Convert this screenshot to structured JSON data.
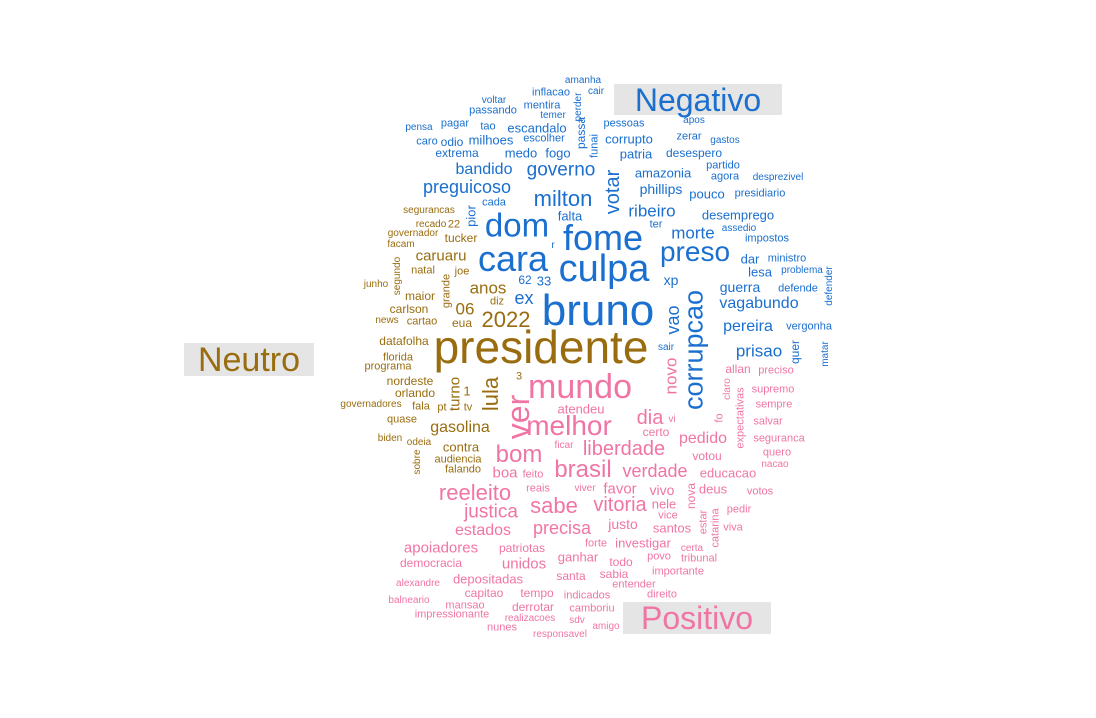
{
  "colors": {
    "negativo": "#1a6fcf",
    "neutro": "#996d0f",
    "positivo": "#f075a5",
    "label_bg": "#e5e5e5"
  },
  "categories": {
    "negativo": "Negativo",
    "neutro": "Neutro",
    "positivo": "Positivo"
  },
  "words": [
    {
      "text": "amanha",
      "cat": "negativo",
      "fs": 10
    },
    {
      "text": "cair",
      "cat": "negativo",
      "fs": 10
    },
    {
      "text": "inflacao",
      "cat": "negativo",
      "fs": 11
    },
    {
      "text": "voltar",
      "cat": "negativo",
      "fs": 10
    },
    {
      "text": "mentira",
      "cat": "negativo",
      "fs": 11
    },
    {
      "text": "perder",
      "cat": "negativo",
      "fs": 10,
      "rot": true
    },
    {
      "text": "passando",
      "cat": "negativo",
      "fs": 11
    },
    {
      "text": "temer",
      "cat": "negativo",
      "fs": 10
    },
    {
      "text": "apos",
      "cat": "negativo",
      "fs": 10
    },
    {
      "text": "passa",
      "cat": "negativo",
      "fs": 12,
      "rot": true
    },
    {
      "text": "pensa",
      "cat": "negativo",
      "fs": 10
    },
    {
      "text": "pagar",
      "cat": "negativo",
      "fs": 11
    },
    {
      "text": "tao",
      "cat": "negativo",
      "fs": 11
    },
    {
      "text": "escandalo",
      "cat": "negativo",
      "fs": 13
    },
    {
      "text": "pessoas",
      "cat": "negativo",
      "fs": 11
    },
    {
      "text": "caro",
      "cat": "negativo",
      "fs": 11
    },
    {
      "text": "odio",
      "cat": "negativo",
      "fs": 12
    },
    {
      "text": "milhoes",
      "cat": "negativo",
      "fs": 13
    },
    {
      "text": "escolher",
      "cat": "negativo",
      "fs": 11
    },
    {
      "text": "funai",
      "cat": "negativo",
      "fs": 11,
      "rot": true
    },
    {
      "text": "corrupto",
      "cat": "negativo",
      "fs": 13
    },
    {
      "text": "zerar",
      "cat": "negativo",
      "fs": 11
    },
    {
      "text": "gastos",
      "cat": "negativo",
      "fs": 10
    },
    {
      "text": "extrema",
      "cat": "negativo",
      "fs": 12
    },
    {
      "text": "medo",
      "cat": "negativo",
      "fs": 13
    },
    {
      "text": "fogo",
      "cat": "negativo",
      "fs": 13
    },
    {
      "text": "patria",
      "cat": "negativo",
      "fs": 13
    },
    {
      "text": "desespero",
      "cat": "negativo",
      "fs": 12
    },
    {
      "text": "partido",
      "cat": "negativo",
      "fs": 11
    },
    {
      "text": "bandido",
      "cat": "negativo",
      "fs": 16
    },
    {
      "text": "governo",
      "cat": "negativo",
      "fs": 19
    },
    {
      "text": "amazonia",
      "cat": "negativo",
      "fs": 13
    },
    {
      "text": "agora",
      "cat": "negativo",
      "fs": 11
    },
    {
      "text": "desprezivel",
      "cat": "negativo",
      "fs": 10
    },
    {
      "text": "votar",
      "cat": "negativo",
      "fs": 20,
      "rot": true
    },
    {
      "text": "preguicoso",
      "cat": "negativo",
      "fs": 18
    },
    {
      "text": "phillips",
      "cat": "negativo",
      "fs": 14
    },
    {
      "text": "pouco",
      "cat": "negativo",
      "fs": 13
    },
    {
      "text": "presidiario",
      "cat": "negativo",
      "fs": 11
    },
    {
      "text": "milton",
      "cat": "negativo",
      "fs": 22
    },
    {
      "text": "cada",
      "cat": "negativo",
      "fs": 11
    },
    {
      "text": "ribeiro",
      "cat": "negativo",
      "fs": 17
    },
    {
      "text": "desemprego",
      "cat": "negativo",
      "fs": 13
    },
    {
      "text": "dom",
      "cat": "negativo",
      "fs": 33
    },
    {
      "text": "falta",
      "cat": "negativo",
      "fs": 13
    },
    {
      "text": "pior",
      "cat": "negativo",
      "fs": 13,
      "rot": true
    },
    {
      "text": "ter",
      "cat": "negativo",
      "fs": 11
    },
    {
      "text": "assedio",
      "cat": "negativo",
      "fs": 10
    },
    {
      "text": "fome",
      "cat": "negativo",
      "fs": 36
    },
    {
      "text": "morte",
      "cat": "negativo",
      "fs": 17
    },
    {
      "text": "impostos",
      "cat": "negativo",
      "fs": 11
    },
    {
      "text": "r",
      "cat": "negativo",
      "fs": 10
    },
    {
      "text": "cara",
      "cat": "negativo",
      "fs": 36
    },
    {
      "text": "preso",
      "cat": "negativo",
      "fs": 28
    },
    {
      "text": "dar",
      "cat": "negativo",
      "fs": 13
    },
    {
      "text": "ministro",
      "cat": "negativo",
      "fs": 11
    },
    {
      "text": "culpa",
      "cat": "negativo",
      "fs": 38
    },
    {
      "text": "lesa",
      "cat": "negativo",
      "fs": 13
    },
    {
      "text": "problema",
      "cat": "negativo",
      "fs": 10
    },
    {
      "text": "62",
      "cat": "negativo",
      "fs": 12
    },
    {
      "text": "33",
      "cat": "negativo",
      "fs": 13
    },
    {
      "text": "xp",
      "cat": "negativo",
      "fs": 14
    },
    {
      "text": "guerra",
      "cat": "negativo",
      "fs": 14
    },
    {
      "text": "defende",
      "cat": "negativo",
      "fs": 11
    },
    {
      "text": "defender",
      "cat": "negativo",
      "fs": 10,
      "rot": true
    },
    {
      "text": "ex",
      "cat": "negativo",
      "fs": 18
    },
    {
      "text": "bruno",
      "cat": "negativo",
      "fs": 44
    },
    {
      "text": "corrupcao",
      "cat": "negativo",
      "fs": 27,
      "rot": true
    },
    {
      "text": "vagabundo",
      "cat": "negativo",
      "fs": 16
    },
    {
      "text": "vao",
      "cat": "negativo",
      "fs": 18,
      "rot": true
    },
    {
      "text": "pereira",
      "cat": "negativo",
      "fs": 16
    },
    {
      "text": "vergonha",
      "cat": "negativo",
      "fs": 11
    },
    {
      "text": "quer",
      "cat": "negativo",
      "fs": 12,
      "rot": true
    },
    {
      "text": "prisao",
      "cat": "negativo",
      "fs": 17
    },
    {
      "text": "sair",
      "cat": "negativo",
      "fs": 10
    },
    {
      "text": "matar",
      "cat": "negativo",
      "fs": 10,
      "rot": true
    },
    {
      "text": "segurancas",
      "cat": "neutro",
      "fs": 10
    },
    {
      "text": "governador",
      "cat": "neutro",
      "fs": 10
    },
    {
      "text": "recado",
      "cat": "neutro",
      "fs": 10
    },
    {
      "text": "22",
      "cat": "neutro",
      "fs": 11
    },
    {
      "text": "tucker",
      "cat": "neutro",
      "fs": 12
    },
    {
      "text": "facam",
      "cat": "neutro",
      "fs": 10
    },
    {
      "text": "caruaru",
      "cat": "neutro",
      "fs": 15
    },
    {
      "text": "segundo",
      "cat": "neutro",
      "fs": 10,
      "rot": true
    },
    {
      "text": "natal",
      "cat": "neutro",
      "fs": 11
    },
    {
      "text": "joe",
      "cat": "neutro",
      "fs": 11
    },
    {
      "text": "junho",
      "cat": "neutro",
      "fs": 10
    },
    {
      "text": "grande",
      "cat": "neutro",
      "fs": 11,
      "rot": true
    },
    {
      "text": "anos",
      "cat": "neutro",
      "fs": 17
    },
    {
      "text": "maior",
      "cat": "neutro",
      "fs": 12
    },
    {
      "text": "diz",
      "cat": "neutro",
      "fs": 11
    },
    {
      "text": "carlson",
      "cat": "neutro",
      "fs": 12
    },
    {
      "text": "06",
      "cat": "neutro",
      "fs": 17
    },
    {
      "text": "2022",
      "cat": "neutro",
      "fs": 22
    },
    {
      "text": "news",
      "cat": "neutro",
      "fs": 10
    },
    {
      "text": "cartao",
      "cat": "neutro",
      "fs": 11
    },
    {
      "text": "eua",
      "cat": "neutro",
      "fs": 12
    },
    {
      "text": "datafolha",
      "cat": "neutro",
      "fs": 12
    },
    {
      "text": "presidente",
      "cat": "neutro",
      "fs": 46
    },
    {
      "text": "florida",
      "cat": "neutro",
      "fs": 11
    },
    {
      "text": "programa",
      "cat": "neutro",
      "fs": 11
    },
    {
      "text": "nordeste",
      "cat": "neutro",
      "fs": 12
    },
    {
      "text": "turno",
      "cat": "neutro",
      "fs": 15,
      "rot": true
    },
    {
      "text": "orlando",
      "cat": "neutro",
      "fs": 12
    },
    {
      "text": "1",
      "cat": "neutro",
      "fs": 13
    },
    {
      "text": "lula",
      "cat": "neutro",
      "fs": 22,
      "rot": true
    },
    {
      "text": "3",
      "cat": "neutro",
      "fs": 11
    },
    {
      "text": "governadores",
      "cat": "neutro",
      "fs": 10
    },
    {
      "text": "fala",
      "cat": "neutro",
      "fs": 11
    },
    {
      "text": "pt",
      "cat": "neutro",
      "fs": 11
    },
    {
      "text": "tv",
      "cat": "neutro",
      "fs": 11
    },
    {
      "text": "quase",
      "cat": "neutro",
      "fs": 11
    },
    {
      "text": "gasolina",
      "cat": "neutro",
      "fs": 16
    },
    {
      "text": "biden",
      "cat": "neutro",
      "fs": 10
    },
    {
      "text": "odeia",
      "cat": "neutro",
      "fs": 10
    },
    {
      "text": "contra",
      "cat": "neutro",
      "fs": 13
    },
    {
      "text": "audiencia",
      "cat": "neutro",
      "fs": 11
    },
    {
      "text": "sobre",
      "cat": "neutro",
      "fs": 10,
      "rot": true
    },
    {
      "text": "falando",
      "cat": "neutro",
      "fs": 11
    },
    {
      "text": "mundo",
      "cat": "positivo",
      "fs": 34
    },
    {
      "text": "ver",
      "cat": "positivo",
      "fs": 32,
      "rot": true
    },
    {
      "text": "novo",
      "cat": "positivo",
      "fs": 17,
      "rot": true
    },
    {
      "text": "allan",
      "cat": "positivo",
      "fs": 12
    },
    {
      "text": "claro",
      "cat": "positivo",
      "fs": 10,
      "rot": true
    },
    {
      "text": "preciso",
      "cat": "positivo",
      "fs": 11
    },
    {
      "text": "supremo",
      "cat": "positivo",
      "fs": 11
    },
    {
      "text": "sempre",
      "cat": "positivo",
      "fs": 11
    },
    {
      "text": "atendeu",
      "cat": "positivo",
      "fs": 13
    },
    {
      "text": "dia",
      "cat": "positivo",
      "fs": 20
    },
    {
      "text": "vi",
      "cat": "positivo",
      "fs": 10
    },
    {
      "text": "fo",
      "cat": "positivo",
      "fs": 11,
      "rot": true
    },
    {
      "text": "expectativas",
      "cat": "positivo",
      "fs": 11,
      "rot": true
    },
    {
      "text": "salvar",
      "cat": "positivo",
      "fs": 11
    },
    {
      "text": "melhor",
      "cat": "positivo",
      "fs": 28
    },
    {
      "text": "certo",
      "cat": "positivo",
      "fs": 12
    },
    {
      "text": "seguranca",
      "cat": "positivo",
      "fs": 11
    },
    {
      "text": "pedido",
      "cat": "positivo",
      "fs": 16
    },
    {
      "text": "quero",
      "cat": "positivo",
      "fs": 11
    },
    {
      "text": "bom",
      "cat": "positivo",
      "fs": 24
    },
    {
      "text": "liberdade",
      "cat": "positivo",
      "fs": 20
    },
    {
      "text": "ficar",
      "cat": "positivo",
      "fs": 10
    },
    {
      "text": "votou",
      "cat": "positivo",
      "fs": 12
    },
    {
      "text": "nacao",
      "cat": "positivo",
      "fs": 10
    },
    {
      "text": "brasil",
      "cat": "positivo",
      "fs": 24
    },
    {
      "text": "verdade",
      "cat": "positivo",
      "fs": 18
    },
    {
      "text": "educacao",
      "cat": "positivo",
      "fs": 13
    },
    {
      "text": "boa",
      "cat": "positivo",
      "fs": 15
    },
    {
      "text": "feito",
      "cat": "positivo",
      "fs": 11
    },
    {
      "text": "deus",
      "cat": "positivo",
      "fs": 13
    },
    {
      "text": "reais",
      "cat": "positivo",
      "fs": 11
    },
    {
      "text": "viver",
      "cat": "positivo",
      "fs": 10
    },
    {
      "text": "favor",
      "cat": "positivo",
      "fs": 15
    },
    {
      "text": "vivo",
      "cat": "positivo",
      "fs": 14
    },
    {
      "text": "nova",
      "cat": "positivo",
      "fs": 12,
      "rot": true
    },
    {
      "text": "votos",
      "cat": "positivo",
      "fs": 11
    },
    {
      "text": "reeleito",
      "cat": "positivo",
      "fs": 22
    },
    {
      "text": "sabe",
      "cat": "positivo",
      "fs": 22
    },
    {
      "text": "vitoria",
      "cat": "positivo",
      "fs": 20
    },
    {
      "text": "nele",
      "cat": "positivo",
      "fs": 13
    },
    {
      "text": "pedir",
      "cat": "positivo",
      "fs": 11
    },
    {
      "text": "justica",
      "cat": "positivo",
      "fs": 19
    },
    {
      "text": "vice",
      "cat": "positivo",
      "fs": 11
    },
    {
      "text": "estar",
      "cat": "positivo",
      "fs": 11,
      "rot": true
    },
    {
      "text": "catarina",
      "cat": "positivo",
      "fs": 11,
      "rot": true
    },
    {
      "text": "viva",
      "cat": "positivo",
      "fs": 11
    },
    {
      "text": "justo",
      "cat": "positivo",
      "fs": 14
    },
    {
      "text": "santos",
      "cat": "positivo",
      "fs": 13
    },
    {
      "text": "estados",
      "cat": "positivo",
      "fs": 16
    },
    {
      "text": "precisa",
      "cat": "positivo",
      "fs": 18
    },
    {
      "text": "investigar",
      "cat": "positivo",
      "fs": 13
    },
    {
      "text": "forte",
      "cat": "positivo",
      "fs": 11
    },
    {
      "text": "certa",
      "cat": "positivo",
      "fs": 10
    },
    {
      "text": "tribunal",
      "cat": "positivo",
      "fs": 11
    },
    {
      "text": "apoiadores",
      "cat": "positivo",
      "fs": 15
    },
    {
      "text": "patriotas",
      "cat": "positivo",
      "fs": 12
    },
    {
      "text": "ganhar",
      "cat": "positivo",
      "fs": 13
    },
    {
      "text": "povo",
      "cat": "positivo",
      "fs": 11
    },
    {
      "text": "democracia",
      "cat": "positivo",
      "fs": 12
    },
    {
      "text": "unidos",
      "cat": "positivo",
      "fs": 15
    },
    {
      "text": "todo",
      "cat": "positivo",
      "fs": 12
    },
    {
      "text": "importante",
      "cat": "positivo",
      "fs": 11
    },
    {
      "text": "sabia",
      "cat": "positivo",
      "fs": 12
    },
    {
      "text": "santa",
      "cat": "positivo",
      "fs": 12
    },
    {
      "text": "depositadas",
      "cat": "positivo",
      "fs": 13
    },
    {
      "text": "alexandre",
      "cat": "positivo",
      "fs": 10
    },
    {
      "text": "entender",
      "cat": "positivo",
      "fs": 11
    },
    {
      "text": "capitao",
      "cat": "positivo",
      "fs": 12
    },
    {
      "text": "tempo",
      "cat": "positivo",
      "fs": 12
    },
    {
      "text": "indicados",
      "cat": "positivo",
      "fs": 11
    },
    {
      "text": "direito",
      "cat": "positivo",
      "fs": 11
    },
    {
      "text": "balneario",
      "cat": "positivo",
      "fs": 10
    },
    {
      "text": "mansao",
      "cat": "positivo",
      "fs": 11
    },
    {
      "text": "derrotar",
      "cat": "positivo",
      "fs": 12
    },
    {
      "text": "camboriu",
      "cat": "positivo",
      "fs": 11
    },
    {
      "text": "impressionante",
      "cat": "positivo",
      "fs": 11
    },
    {
      "text": "realizacoes",
      "cat": "positivo",
      "fs": 10
    },
    {
      "text": "sdv",
      "cat": "positivo",
      "fs": 10
    },
    {
      "text": "amigo",
      "cat": "positivo",
      "fs": 10
    },
    {
      "text": "nunes",
      "cat": "positivo",
      "fs": 11
    },
    {
      "text": "responsavel",
      "cat": "positivo",
      "fs": 10
    }
  ]
}
